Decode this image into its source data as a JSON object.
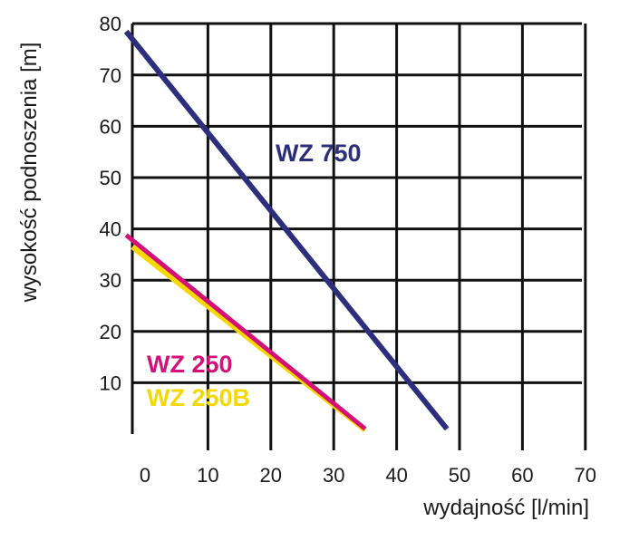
{
  "chart_data": {
    "type": "line",
    "title": "",
    "xlabel": "wydajność [l/min]",
    "ylabel": "wysokość podnoszenia [m]",
    "xlim": [
      -3,
      70
    ],
    "ylim": [
      0,
      80
    ],
    "x_ticks": [
      "0",
      "10",
      "20",
      "30",
      "40",
      "50",
      "60",
      "70"
    ],
    "y_ticks": [
      "10",
      "20",
      "30",
      "40",
      "50",
      "60",
      "70",
      "80"
    ],
    "grid": true,
    "series": [
      {
        "name": "WZ 750",
        "color": "#2d2f7c",
        "x": [
          -3,
          48
        ],
        "y": [
          78.5,
          1
        ]
      },
      {
        "name": "WZ 250",
        "color": "#d4117a",
        "x": [
          -3,
          35
        ],
        "y": [
          38.8,
          1
        ]
      },
      {
        "name": "WZ 250B",
        "color": "#f5d800",
        "x": [
          -2,
          35
        ],
        "y": [
          36.5,
          0.8
        ]
      }
    ]
  }
}
